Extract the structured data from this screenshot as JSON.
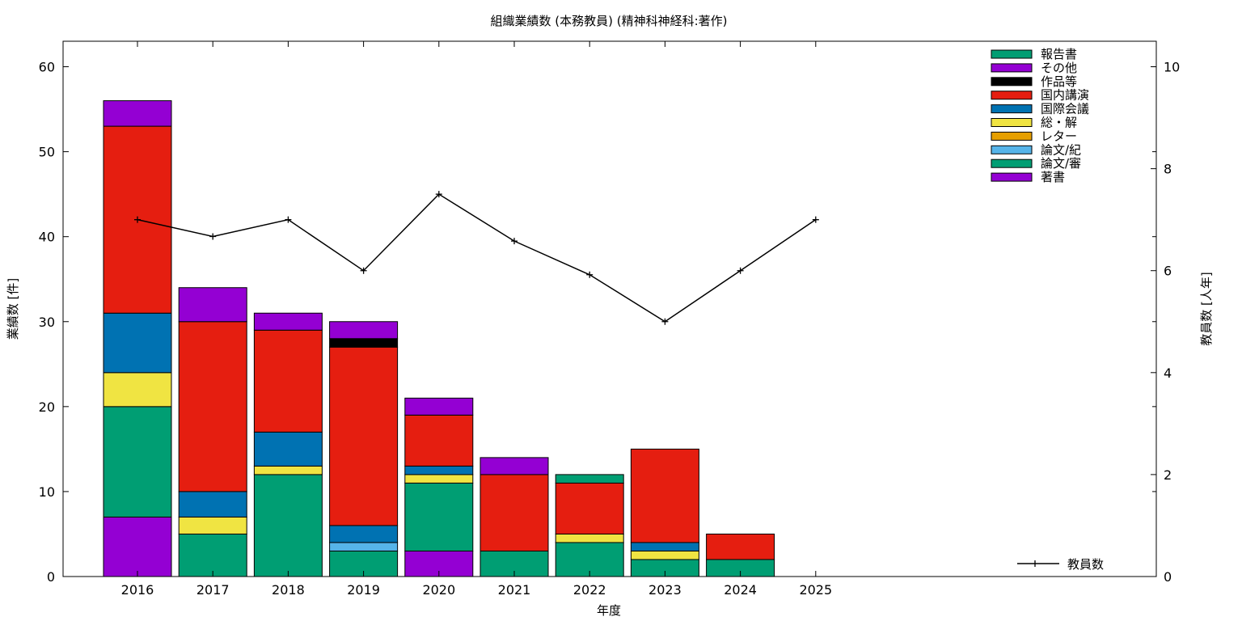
{
  "chart_data": {
    "type": "bar",
    "stacked": true,
    "title": "組織業績数 (本務教員) (精神科神経科:著作)",
    "xlabel": "年度",
    "ylabel": "業績数 [件]",
    "y2label": "教員数 [人年]",
    "categories": [
      "2016",
      "2017",
      "2018",
      "2019",
      "2020",
      "2021",
      "2022",
      "2023",
      "2024",
      "2025"
    ],
    "ylim": [
      0,
      63
    ],
    "yticks": [
      0,
      10,
      20,
      30,
      40,
      50,
      60
    ],
    "y2lim": [
      0,
      10.5
    ],
    "y2ticks": [
      0,
      2,
      4,
      6,
      8,
      10
    ],
    "grid": false,
    "legend_position": "top-right",
    "series": [
      {
        "name": "著書",
        "color": "#9400d3",
        "values": [
          7,
          0,
          0,
          0,
          3,
          0,
          0,
          0,
          0,
          0
        ]
      },
      {
        "name": "論文/審",
        "color": "#009e73",
        "values": [
          13,
          5,
          12,
          3,
          8,
          3,
          4,
          2,
          2,
          0
        ]
      },
      {
        "name": "論文/紀",
        "color": "#56b4e9",
        "values": [
          0,
          0,
          0,
          1,
          0,
          0,
          0,
          0,
          0,
          0
        ]
      },
      {
        "name": "レター",
        "color": "#e69f00",
        "values": [
          0,
          0,
          0,
          0,
          0,
          0,
          0,
          0,
          0,
          0
        ]
      },
      {
        "name": "総・解",
        "color": "#f0e442",
        "values": [
          4,
          2,
          1,
          0,
          1,
          0,
          1,
          1,
          0,
          0
        ]
      },
      {
        "name": "国際会議",
        "color": "#0072b2",
        "values": [
          7,
          3,
          4,
          2,
          1,
          0,
          0,
          1,
          0,
          0
        ]
      },
      {
        "name": "国内講演",
        "color": "#e51e10",
        "values": [
          22,
          20,
          12,
          21,
          6,
          9,
          6,
          11,
          3,
          0
        ]
      },
      {
        "name": "作品等",
        "color": "#000000",
        "values": [
          0,
          0,
          0,
          1,
          0,
          0,
          0,
          0,
          0,
          0
        ]
      },
      {
        "name": "その他",
        "color": "#9400d3",
        "values": [
          3,
          4,
          2,
          2,
          2,
          2,
          0,
          0,
          0,
          0
        ]
      },
      {
        "name": "報告書",
        "color": "#009e73",
        "values": [
          0,
          0,
          0,
          0,
          0,
          0,
          1,
          0,
          0,
          0
        ]
      }
    ],
    "line_series": {
      "name": "教員数",
      "color": "#000000",
      "axis": "y2",
      "values": [
        7.0,
        6.67,
        7.0,
        6.0,
        7.5,
        6.58,
        5.92,
        5.0,
        6.0,
        7.0
      ]
    }
  }
}
